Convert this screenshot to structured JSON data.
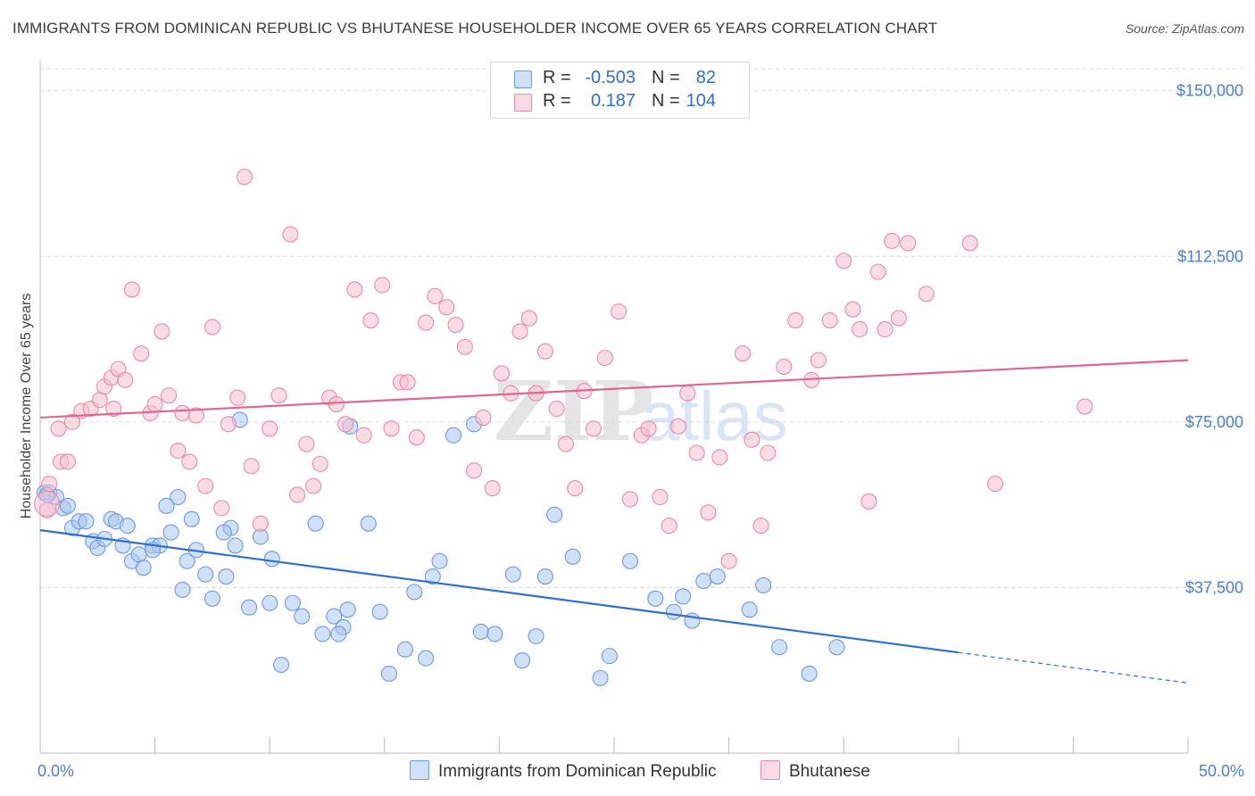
{
  "title": "IMMIGRANTS FROM DOMINICAN REPUBLIC VS BHUTANESE HOUSEHOLDER INCOME OVER 65 YEARS CORRELATION CHART",
  "source": "Source: ZipAtlas.com",
  "watermark": {
    "zip": "ZIP",
    "atlas": "atlas"
  },
  "legend": {
    "rows": [
      {
        "r_label": "R =",
        "r_value": "-0.503",
        "n_label": "N =",
        "n_value": "82",
        "color": "#a9c7f0",
        "border": "#6d9be0"
      },
      {
        "r_label": "R =",
        "r_value": "0.187",
        "n_label": "N =",
        "n_value": "104",
        "color": "#f7bfd0",
        "border": "#ea8aa7"
      }
    ]
  },
  "bottom_legend": {
    "items": [
      {
        "label": "Immigrants from Dominican Republic",
        "color": "#a9c7f0",
        "border": "#6d9be0"
      },
      {
        "label": "Bhutanese",
        "color": "#f7bfd0",
        "border": "#ea8aa7"
      }
    ]
  },
  "chart_data": {
    "type": "scatter",
    "title": "IMMIGRANTS FROM DOMINICAN REPUBLIC VS BHUTANESE HOUSEHOLDER INCOME OVER 65 YEARS CORRELATION CHART",
    "xlabel": "",
    "ylabel": "Householder Income Over 65 years",
    "xlim": [
      0,
      50
    ],
    "ylim": [
      0,
      155000
    ],
    "x_tick_labels": [
      "0.0%",
      "50.0%"
    ],
    "y_ticks": [
      37500,
      75000,
      112500,
      150000
    ],
    "y_tick_labels": [
      "$37,500",
      "$75,000",
      "$112,500",
      "$150,000"
    ],
    "grid": true,
    "series": [
      {
        "name": "Immigrants from Dominican Republic",
        "color": "#6d9be0",
        "fill": "#a9c7f0",
        "trend": {
          "x0": 0,
          "y0": 50500,
          "x1": 40,
          "y1": 22800,
          "dash_to_x": 50,
          "dash_to_y": 15900,
          "color": "#2f6fd0"
        },
        "points": [
          [
            0.2,
            59000
          ],
          [
            0.4,
            59000
          ],
          [
            0.7,
            58000
          ],
          [
            1.0,
            55500
          ],
          [
            1.2,
            56000
          ],
          [
            1.4,
            51000
          ],
          [
            1.7,
            52500
          ],
          [
            2.0,
            52500
          ],
          [
            2.3,
            48000
          ],
          [
            2.5,
            46500
          ],
          [
            2.8,
            48500
          ],
          [
            3.1,
            53000
          ],
          [
            3.3,
            52500
          ],
          [
            3.8,
            51500
          ],
          [
            3.6,
            47000
          ],
          [
            4.0,
            43500
          ],
          [
            4.3,
            45000
          ],
          [
            4.5,
            42000
          ],
          [
            4.9,
            47000
          ],
          [
            5.2,
            47000
          ],
          [
            5.5,
            56000
          ],
          [
            5.7,
            50000
          ],
          [
            6.0,
            58000
          ],
          [
            6.4,
            43500
          ],
          [
            6.6,
            53000
          ],
          [
            6.8,
            46000
          ],
          [
            7.2,
            40500
          ],
          [
            7.5,
            35000
          ],
          [
            8.1,
            40000
          ],
          [
            8.3,
            51000
          ],
          [
            8.5,
            47000
          ],
          [
            8.7,
            75500
          ],
          [
            8.0,
            50000
          ],
          [
            9.1,
            33000
          ],
          [
            9.6,
            49000
          ],
          [
            10.1,
            44000
          ],
          [
            10.5,
            20000
          ],
          [
            11.0,
            34000
          ],
          [
            11.4,
            31000
          ],
          [
            12.0,
            52000
          ],
          [
            12.3,
            27000
          ],
          [
            12.8,
            31000
          ],
          [
            13.2,
            28500
          ],
          [
            13.4,
            32500
          ],
          [
            13.5,
            74000
          ],
          [
            14.3,
            52000
          ],
          [
            14.8,
            32000
          ],
          [
            15.2,
            18000
          ],
          [
            15.9,
            23500
          ],
          [
            16.3,
            36500
          ],
          [
            16.8,
            21500
          ],
          [
            17.1,
            40000
          ],
          [
            17.4,
            43500
          ],
          [
            18.0,
            72000
          ],
          [
            18.9,
            74500
          ],
          [
            19.2,
            27500
          ],
          [
            19.8,
            27000
          ],
          [
            20.6,
            40500
          ],
          [
            21.0,
            21000
          ],
          [
            21.6,
            26500
          ],
          [
            22.4,
            54000
          ],
          [
            22.0,
            40000
          ],
          [
            23.2,
            44500
          ],
          [
            24.4,
            17000
          ],
          [
            24.8,
            22000
          ],
          [
            25.7,
            43500
          ],
          [
            26.8,
            35000
          ],
          [
            27.6,
            32000
          ],
          [
            28.0,
            35500
          ],
          [
            28.4,
            30000
          ],
          [
            28.9,
            39000
          ],
          [
            29.5,
            40000
          ],
          [
            30.9,
            32500
          ],
          [
            31.5,
            38000
          ],
          [
            32.2,
            24000
          ],
          [
            33.5,
            18000
          ],
          [
            34.7,
            24000
          ],
          [
            4.9,
            46000
          ],
          [
            10.0,
            34000
          ],
          [
            13.0,
            27000
          ],
          [
            0.3,
            58500
          ],
          [
            6.2,
            37000
          ]
        ]
      },
      {
        "name": "Bhutanese",
        "color": "#ea8aa7",
        "fill": "#f7bfd0",
        "trend": {
          "x0": 0,
          "y0": 76000,
          "x1": 50,
          "y1": 89000,
          "color": "#e0668f"
        },
        "points": [
          [
            0.3,
            55000
          ],
          [
            0.4,
            61000
          ],
          [
            0.9,
            66000
          ],
          [
            1.2,
            66000
          ],
          [
            1.4,
            75000
          ],
          [
            1.8,
            77500
          ],
          [
            2.2,
            78000
          ],
          [
            2.6,
            80000
          ],
          [
            2.8,
            83000
          ],
          [
            3.1,
            85000
          ],
          [
            3.4,
            87000
          ],
          [
            3.7,
            84500
          ],
          [
            4.0,
            105000
          ],
          [
            4.4,
            90500
          ],
          [
            4.8,
            77000
          ],
          [
            5.0,
            79000
          ],
          [
            5.3,
            95500
          ],
          [
            5.6,
            81000
          ],
          [
            6.0,
            68500
          ],
          [
            6.2,
            77000
          ],
          [
            6.5,
            66000
          ],
          [
            6.8,
            76500
          ],
          [
            7.2,
            60500
          ],
          [
            7.5,
            96500
          ],
          [
            7.9,
            55500
          ],
          [
            8.2,
            74500
          ],
          [
            8.6,
            80500
          ],
          [
            8.9,
            130500
          ],
          [
            9.2,
            65000
          ],
          [
            9.6,
            52000
          ],
          [
            10.0,
            73500
          ],
          [
            10.4,
            81000
          ],
          [
            10.9,
            117500
          ],
          [
            11.2,
            58500
          ],
          [
            11.6,
            70000
          ],
          [
            11.9,
            60500
          ],
          [
            12.2,
            65500
          ],
          [
            12.6,
            80500
          ],
          [
            12.9,
            79000
          ],
          [
            13.3,
            74500
          ],
          [
            13.7,
            105000
          ],
          [
            14.1,
            72000
          ],
          [
            14.4,
            98000
          ],
          [
            14.9,
            106000
          ],
          [
            15.3,
            73500
          ],
          [
            15.7,
            84000
          ],
          [
            16.0,
            84000
          ],
          [
            16.4,
            71500
          ],
          [
            16.8,
            97500
          ],
          [
            17.2,
            103500
          ],
          [
            17.7,
            101000
          ],
          [
            18.1,
            97000
          ],
          [
            18.5,
            92000
          ],
          [
            18.9,
            64000
          ],
          [
            19.3,
            76000
          ],
          [
            19.7,
            60000
          ],
          [
            20.1,
            86000
          ],
          [
            20.5,
            81500
          ],
          [
            20.9,
            95500
          ],
          [
            21.3,
            98500
          ],
          [
            21.6,
            81500
          ],
          [
            22.0,
            91000
          ],
          [
            22.5,
            78000
          ],
          [
            22.9,
            70000
          ],
          [
            23.3,
            60000
          ],
          [
            23.7,
            82000
          ],
          [
            24.1,
            73500
          ],
          [
            24.6,
            89500
          ],
          [
            25.2,
            100000
          ],
          [
            25.7,
            57500
          ],
          [
            26.2,
            72000
          ],
          [
            26.5,
            73500
          ],
          [
            27.0,
            58000
          ],
          [
            27.4,
            51500
          ],
          [
            27.8,
            74000
          ],
          [
            28.2,
            81500
          ],
          [
            28.6,
            68000
          ],
          [
            29.1,
            54500
          ],
          [
            29.6,
            67000
          ],
          [
            30.0,
            43500
          ],
          [
            30.6,
            90500
          ],
          [
            31.0,
            71000
          ],
          [
            31.4,
            51500
          ],
          [
            31.7,
            68000
          ],
          [
            32.4,
            87500
          ],
          [
            32.9,
            98000
          ],
          [
            33.6,
            84500
          ],
          [
            33.9,
            89000
          ],
          [
            34.4,
            98000
          ],
          [
            35.0,
            111500
          ],
          [
            35.4,
            100500
          ],
          [
            35.7,
            96000
          ],
          [
            36.1,
            57000
          ],
          [
            36.5,
            109000
          ],
          [
            36.8,
            96000
          ],
          [
            37.1,
            116000
          ],
          [
            37.4,
            98500
          ],
          [
            37.8,
            115500
          ],
          [
            38.6,
            104000
          ],
          [
            40.5,
            115500
          ],
          [
            41.6,
            61000
          ],
          [
            45.5,
            78500
          ],
          [
            0.8,
            73500
          ],
          [
            3.2,
            78000
          ]
        ]
      }
    ]
  }
}
